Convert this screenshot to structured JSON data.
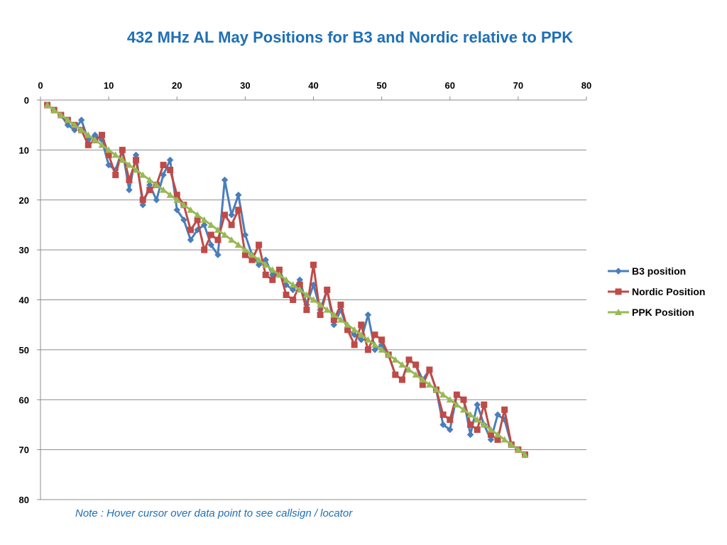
{
  "chart_data": {
    "type": "line",
    "title": "432 MHz AL May Positions for B3 and Nordic relative to PPK",
    "note": "Note : Hover cursor over data point to see callsign / locator",
    "xlim": [
      0,
      80
    ],
    "ylim": [
      0,
      80
    ],
    "y_inverted": true,
    "x_axis_position": "top",
    "xticks": [
      "0",
      "10",
      "20",
      "30",
      "40",
      "50",
      "60",
      "70",
      "80"
    ],
    "yticks": [
      "0",
      "10",
      "20",
      "30",
      "40",
      "50",
      "60",
      "70",
      "80"
    ],
    "grid": "horizontal",
    "legend_position": "right",
    "series": [
      {
        "name": "B3 position",
        "color": "#4a7ebb",
        "marker": "diamond",
        "x": [
          1,
          2,
          3,
          4,
          5,
          6,
          7,
          8,
          9,
          10,
          11,
          12,
          13,
          14,
          15,
          16,
          17,
          18,
          19,
          20,
          21,
          22,
          23,
          24,
          25,
          26,
          27,
          28,
          29,
          30,
          31,
          32,
          33,
          34,
          35,
          36,
          37,
          38,
          39,
          40,
          41,
          42,
          43,
          44,
          45,
          46,
          47,
          48,
          49,
          50,
          51,
          52,
          53,
          54,
          55,
          56,
          57,
          58,
          59,
          60,
          61,
          62,
          63,
          64,
          65,
          66,
          67,
          68,
          69,
          70,
          71
        ],
        "y": [
          1,
          2,
          3,
          5,
          6,
          4,
          8,
          7,
          8,
          13,
          14,
          10,
          18,
          11,
          21,
          17,
          20,
          15,
          12,
          22,
          24,
          28,
          26,
          25,
          29,
          31,
          16,
          23,
          19,
          27,
          31,
          33,
          32,
          35,
          34,
          37,
          38,
          36,
          41,
          37,
          42,
          38,
          45,
          42,
          46,
          47,
          48,
          43,
          50,
          49,
          51,
          55,
          56,
          52,
          53,
          56,
          54,
          58,
          65,
          66,
          59,
          60,
          67,
          61,
          65,
          68,
          63,
          64,
          69,
          70,
          71
        ]
      },
      {
        "name": "Nordic Position",
        "color": "#be4b48",
        "marker": "square",
        "x": [
          1,
          2,
          3,
          4,
          5,
          6,
          7,
          8,
          9,
          10,
          11,
          12,
          13,
          14,
          15,
          16,
          17,
          18,
          19,
          20,
          21,
          22,
          23,
          24,
          25,
          26,
          27,
          28,
          29,
          30,
          31,
          32,
          33,
          34,
          35,
          36,
          37,
          38,
          39,
          40,
          41,
          42,
          43,
          44,
          45,
          46,
          47,
          48,
          49,
          50,
          51,
          52,
          53,
          54,
          55,
          56,
          57,
          58,
          59,
          60,
          61,
          62,
          63,
          64,
          65,
          66,
          67,
          68,
          69,
          70,
          71
        ],
        "y": [
          1,
          2,
          3,
          4,
          5,
          6,
          9,
          8,
          7,
          11,
          15,
          10,
          16,
          12,
          20,
          18,
          17,
          13,
          14,
          19,
          21,
          26,
          24,
          30,
          27,
          28,
          23,
          25,
          22,
          31,
          32,
          29,
          35,
          36,
          34,
          39,
          40,
          37,
          42,
          33,
          43,
          38,
          44,
          41,
          46,
          49,
          45,
          50,
          47,
          48,
          51,
          55,
          56,
          52,
          53,
          57,
          54,
          58,
          63,
          64,
          59,
          60,
          65,
          66,
          61,
          67,
          68,
          62,
          69,
          70,
          71
        ]
      },
      {
        "name": "PPK Position",
        "color": "#98b954",
        "marker": "triangle",
        "x": [
          1,
          2,
          3,
          4,
          5,
          6,
          7,
          8,
          9,
          10,
          11,
          12,
          13,
          14,
          15,
          16,
          17,
          18,
          19,
          20,
          21,
          22,
          23,
          24,
          25,
          26,
          27,
          28,
          29,
          30,
          31,
          32,
          33,
          34,
          35,
          36,
          37,
          38,
          39,
          40,
          41,
          42,
          43,
          44,
          45,
          46,
          47,
          48,
          49,
          50,
          51,
          52,
          53,
          54,
          55,
          56,
          57,
          58,
          59,
          60,
          61,
          62,
          63,
          64,
          65,
          66,
          67,
          68,
          69,
          70,
          71
        ],
        "y": [
          1,
          2,
          3,
          4,
          5,
          6,
          7,
          8,
          9,
          10,
          11,
          12,
          13,
          14,
          15,
          16,
          17,
          18,
          19,
          20,
          21,
          22,
          23,
          24,
          25,
          26,
          27,
          28,
          29,
          30,
          31,
          32,
          33,
          34,
          35,
          36,
          37,
          38,
          39,
          40,
          41,
          42,
          43,
          44,
          45,
          46,
          47,
          48,
          49,
          50,
          51,
          52,
          53,
          54,
          55,
          56,
          57,
          58,
          59,
          60,
          61,
          62,
          63,
          64,
          65,
          66,
          67,
          68,
          69,
          70,
          71
        ]
      }
    ]
  }
}
